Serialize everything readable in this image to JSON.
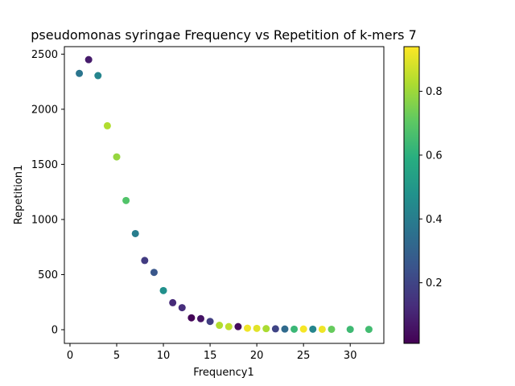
{
  "chart_data": {
    "type": "scatter",
    "title": "pseudomonas syringae Frequency vs Repetition of k-mers 7",
    "xlabel": "Frequency1",
    "ylabel": "Repetition1",
    "xlim": [
      -0.6,
      33.6
    ],
    "ylim": [
      -124,
      2568
    ],
    "x_ticks": [
      0,
      5,
      10,
      15,
      20,
      25,
      30
    ],
    "x_tick_labels": [
      "0",
      "5",
      "10",
      "15",
      "20",
      "25",
      "30"
    ],
    "y_ticks": [
      0,
      500,
      1000,
      1500,
      2000,
      2500
    ],
    "y_tick_labels": [
      "0",
      "500",
      "1000",
      "1500",
      "2000",
      "2500"
    ],
    "grid": false,
    "colormap": "viridis",
    "colorbar": {
      "range": [
        0.01,
        0.94
      ],
      "ticks": [
        0.2,
        0.4,
        0.6,
        0.8
      ],
      "tick_labels": [
        "0.2",
        "0.4",
        "0.6",
        "0.8"
      ]
    },
    "points": [
      {
        "x": 1,
        "y": 2325,
        "c": 0.37
      },
      {
        "x": 2,
        "y": 2450,
        "c": 0.08
      },
      {
        "x": 3,
        "y": 2305,
        "c": 0.43
      },
      {
        "x": 4,
        "y": 1850,
        "c": 0.83
      },
      {
        "x": 5,
        "y": 1568,
        "c": 0.79
      },
      {
        "x": 6,
        "y": 1172,
        "c": 0.68
      },
      {
        "x": 7,
        "y": 872,
        "c": 0.4
      },
      {
        "x": 8,
        "y": 628,
        "c": 0.17
      },
      {
        "x": 9,
        "y": 520,
        "c": 0.26
      },
      {
        "x": 10,
        "y": 355,
        "c": 0.47
      },
      {
        "x": 11,
        "y": 245,
        "c": 0.12
      },
      {
        "x": 12,
        "y": 200,
        "c": 0.13
      },
      {
        "x": 13,
        "y": 108,
        "c": 0.02
      },
      {
        "x": 14,
        "y": 100,
        "c": 0.06
      },
      {
        "x": 15,
        "y": 75,
        "c": 0.18
      },
      {
        "x": 16,
        "y": 40,
        "c": 0.83
      },
      {
        "x": 17,
        "y": 28,
        "c": 0.85
      },
      {
        "x": 18,
        "y": 28,
        "c": 0.04
      },
      {
        "x": 19,
        "y": 14,
        "c": 0.92
      },
      {
        "x": 20,
        "y": 12,
        "c": 0.9
      },
      {
        "x": 21,
        "y": 10,
        "c": 0.82
      },
      {
        "x": 22,
        "y": 8,
        "c": 0.2
      },
      {
        "x": 23,
        "y": 6,
        "c": 0.33
      },
      {
        "x": 24,
        "y": 5,
        "c": 0.63
      },
      {
        "x": 25,
        "y": 6,
        "c": 0.93
      },
      {
        "x": 26,
        "y": 5,
        "c": 0.43
      },
      {
        "x": 27,
        "y": 4,
        "c": 0.92
      },
      {
        "x": 28,
        "y": 4,
        "c": 0.72
      },
      {
        "x": 30,
        "y": 3,
        "c": 0.64
      },
      {
        "x": 32,
        "y": 3,
        "c": 0.65
      }
    ]
  }
}
